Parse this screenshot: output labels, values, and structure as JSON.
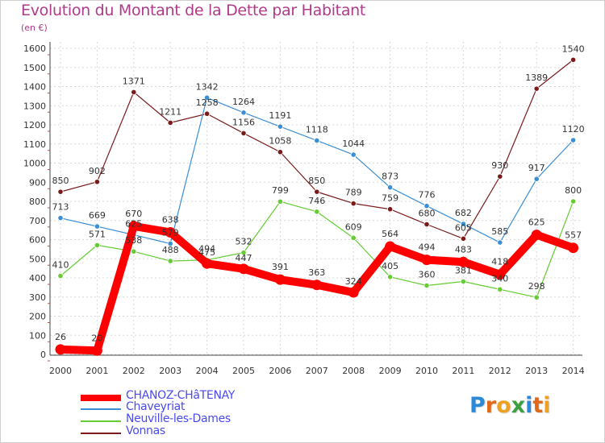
{
  "header": {
    "title": "Evolution du Montant de la Dette par Habitant",
    "unit": "(en €)"
  },
  "logo": {
    "text": "Proxiti",
    "letter_colors": [
      "#2a8ad8",
      "#e06a1a",
      "#f0a020",
      "#3aa040",
      "#2a8ad8",
      "#e06a1a",
      "#f0a020"
    ]
  },
  "chart_data": {
    "type": "line",
    "title": "Evolution du Montant de la Dette par Habitant",
    "subtitle": "(en €)",
    "x": [
      "2000",
      "2001",
      "2002",
      "2003",
      "2004",
      "2005",
      "2006",
      "2007",
      "2008",
      "2009",
      "2010",
      "2011",
      "2012",
      "2013",
      "2014"
    ],
    "ylim": [
      0,
      1600
    ],
    "yticks": [
      0,
      100,
      200,
      300,
      400,
      500,
      600,
      700,
      800,
      900,
      1000,
      1100,
      1200,
      1300,
      1400,
      1500,
      1600
    ],
    "grid": true,
    "legend_position": "bottom-left",
    "series": [
      {
        "name": "CHANOZ-CHâTENAY",
        "color": "#ff0000",
        "values": [
          26,
          20,
          670,
          638,
          475,
          447,
          391,
          363,
          324,
          564,
          494,
          483,
          418,
          625,
          557
        ],
        "labels": [
          "26",
          "20",
          "670",
          "638",
          "475",
          "447",
          "391",
          "363",
          "324",
          "564",
          "494",
          "483",
          "418",
          "625",
          "557"
        ]
      },
      {
        "name": "Chaveyriat",
        "color": "#3b8ed4",
        "values": [
          713,
          669,
          625,
          579,
          1342,
          1264,
          1191,
          1118,
          1044,
          873,
          776,
          682,
          585,
          917,
          1120
        ],
        "labels": [
          "713",
          "669",
          "625",
          "579",
          "1342",
          "1264",
          "1191",
          "1118",
          "1044",
          "873",
          "776",
          "682",
          "585",
          "917",
          "1120"
        ]
      },
      {
        "name": "Neuville-les-Dames",
        "color": "#66cc33",
        "values": [
          410,
          571,
          538,
          488,
          494,
          532,
          799,
          746,
          609,
          405,
          360,
          381,
          340,
          298,
          800
        ],
        "labels": [
          "410",
          "571",
          "538",
          "488",
          "494",
          "532",
          "799",
          "746",
          "609",
          "405",
          "360",
          "381",
          "340",
          "298",
          "800"
        ]
      },
      {
        "name": "Vonnas",
        "color": "#7a1a1a",
        "values": [
          850,
          902,
          1371,
          1211,
          1258,
          1156,
          1058,
          850,
          789,
          759,
          680,
          605,
          930,
          1389,
          1540
        ],
        "labels": [
          "850",
          "902",
          "1371",
          "1211",
          "1258",
          "1156",
          "1058",
          "850",
          "789",
          "759",
          "680",
          "605",
          "930",
          "1389",
          "1540"
        ]
      }
    ]
  }
}
